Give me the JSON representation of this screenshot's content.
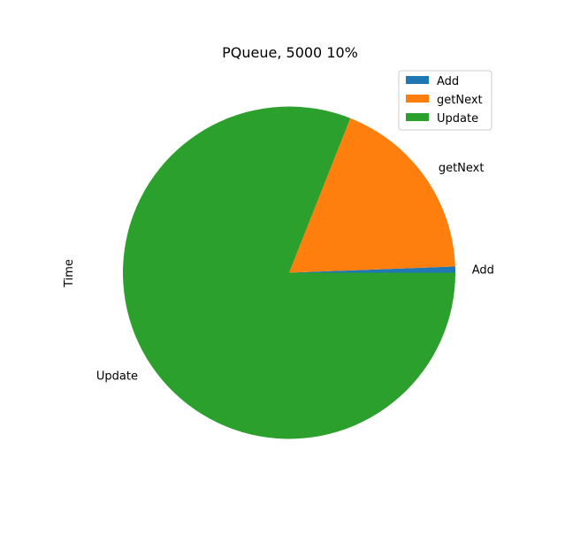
{
  "chart_data": {
    "type": "pie",
    "title": "PQueue, 5000 10%",
    "ylabel": "Time",
    "categories": [
      "Add",
      "getNext",
      "Update"
    ],
    "values": [
      0.6,
      18.4,
      81.0
    ],
    "colors": [
      "#1f77b4",
      "#ff7f0e",
      "#2ca02c"
    ],
    "legend": {
      "placement": "top-right",
      "entries": [
        "Add",
        "getNext",
        "Update"
      ]
    }
  }
}
